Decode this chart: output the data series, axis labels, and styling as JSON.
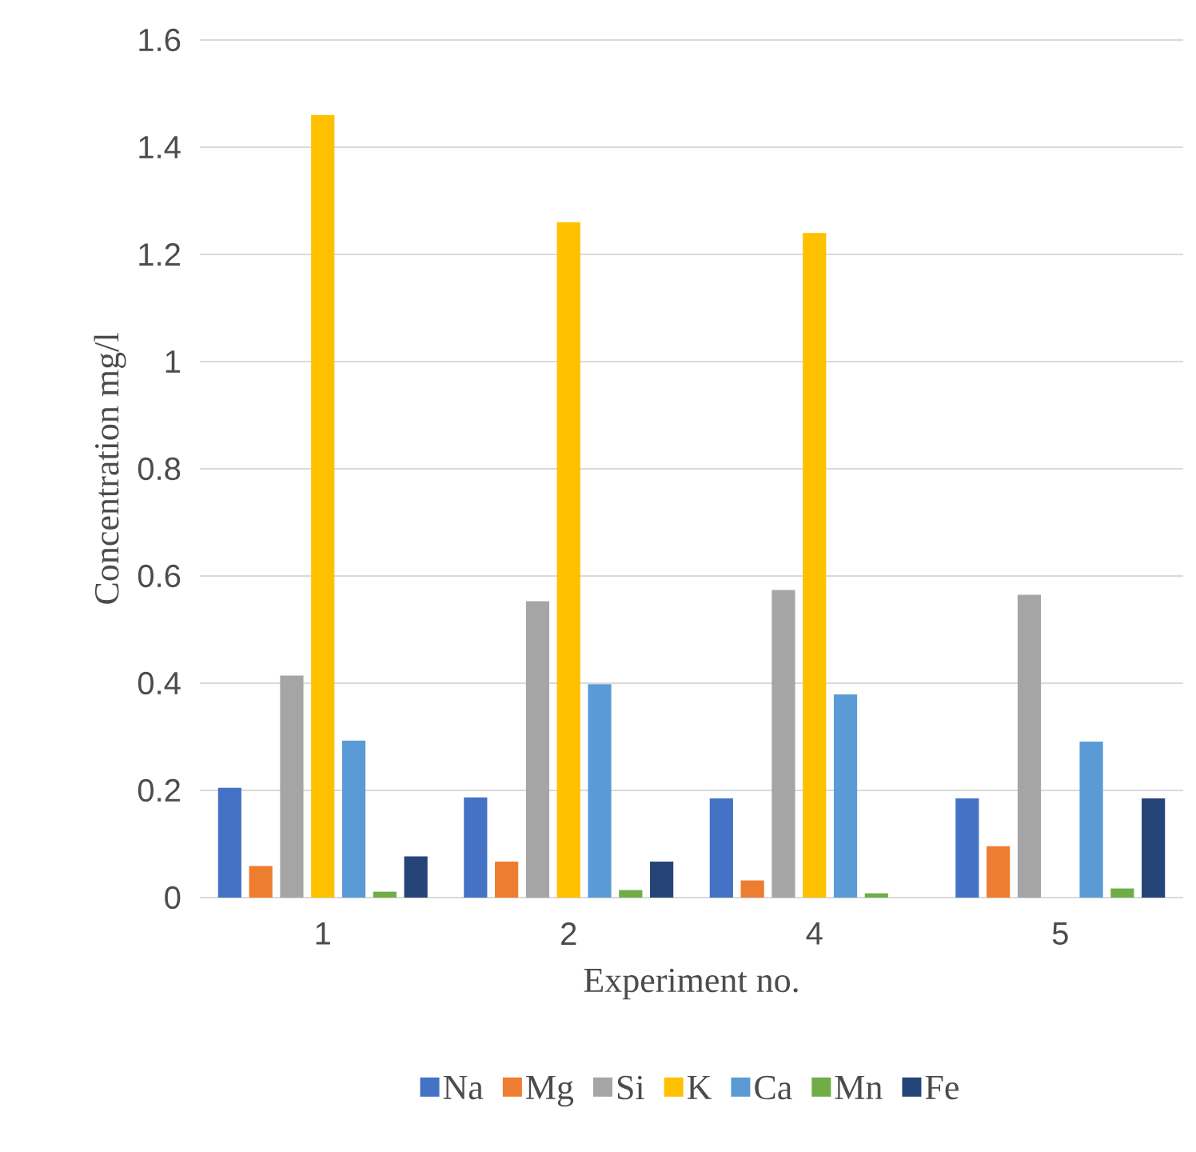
{
  "chart_data": {
    "type": "bar",
    "xlabel": "Experiment no.",
    "ylabel": "Concentration mg/l",
    "categories": [
      "1",
      "2",
      "4",
      "5"
    ],
    "series": [
      {
        "name": "Na",
        "color": "#4472c4",
        "values": [
          0.205,
          0.187,
          0.185,
          0.185
        ]
      },
      {
        "name": "Mg",
        "color": "#ed7d31",
        "values": [
          0.059,
          0.067,
          0.032,
          0.096
        ]
      },
      {
        "name": "Si",
        "color": "#a5a5a5",
        "values": [
          0.414,
          0.553,
          0.574,
          0.565
        ]
      },
      {
        "name": "K",
        "color": "#ffc000",
        "values": [
          1.46,
          1.26,
          1.24,
          null
        ]
      },
      {
        "name": "Ca",
        "color": "#5b9bd5",
        "values": [
          0.293,
          0.398,
          0.379,
          0.291
        ]
      },
      {
        "name": "Mn",
        "color": "#70ad47",
        "values": [
          0.011,
          0.014,
          0.008,
          0.017
        ]
      },
      {
        "name": "Fe",
        "color": "#264478",
        "values": [
          0.077,
          0.067,
          null,
          0.185
        ]
      }
    ],
    "ylim": [
      0,
      1.6
    ],
    "yticks": [
      0,
      {
        "value": 0.2,
        "label": "0.2"
      },
      {
        "value": 0.4,
        "label": "0.4"
      },
      {
        "value": 0.6,
        "label": "0.6"
      },
      {
        "value": 0.8,
        "label": "0.8"
      },
      1,
      {
        "value": 1.2,
        "label": "1.2"
      },
      {
        "value": 1.4,
        "label": "1.4"
      },
      {
        "value": 1.6,
        "label": "1.6"
      }
    ],
    "grid": "y",
    "legend": "bottom"
  }
}
